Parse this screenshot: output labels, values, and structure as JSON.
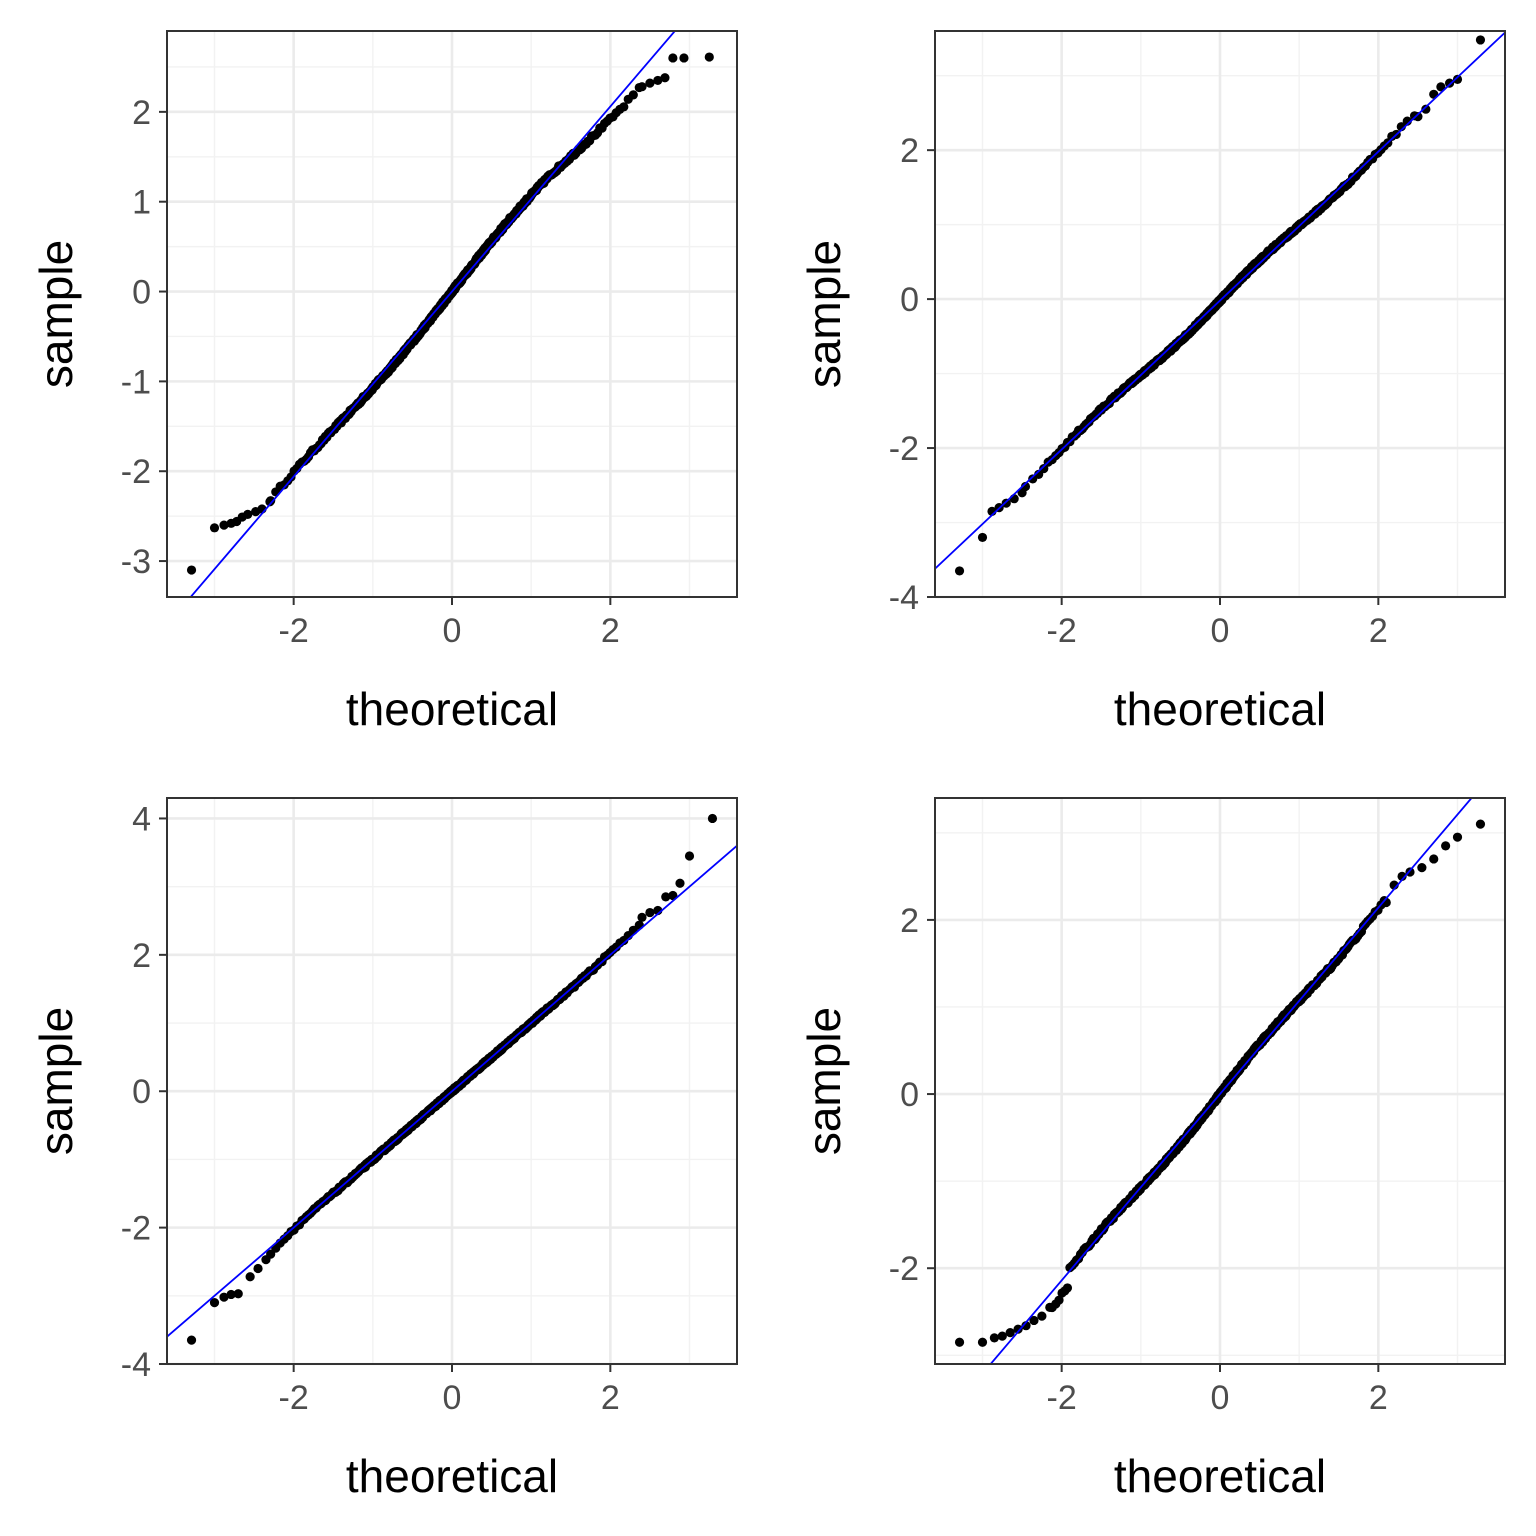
{
  "colors": {
    "background": "#ffffff",
    "panel_border": "#333333",
    "grid_major": "#ebebeb",
    "grid_minor": "#f2f2f2",
    "points": "#000000",
    "reference_line": "#0000ff"
  },
  "chart_data": [
    {
      "type": "scatter",
      "xlabel": "theoretical",
      "ylabel": "sample",
      "xlim": [
        -3.6,
        3.6
      ],
      "ylim": [
        -3.4,
        2.9
      ],
      "xticks": [
        {
          "value": -2,
          "label": "-2"
        },
        {
          "value": 0,
          "label": "0"
        },
        {
          "value": 2,
          "label": "2"
        }
      ],
      "yticks": [
        {
          "value": -3,
          "label": "-3"
        },
        {
          "value": -2,
          "label": "-2"
        },
        {
          "value": -1,
          "label": "-1"
        },
        {
          "value": 0,
          "label": "0"
        },
        {
          "value": 1,
          "label": "1"
        },
        {
          "value": 2,
          "label": "2"
        }
      ],
      "reference_line": {
        "intercept": 0.0,
        "slope": 1.03
      },
      "deviation": "lighttails",
      "tail_points": {
        "low": [
          [
            -3.29,
            -3.1
          ],
          [
            -3.0,
            -2.63
          ],
          [
            -2.88,
            -2.6
          ],
          [
            -2.79,
            -2.58
          ],
          [
            -2.72,
            -2.56
          ],
          [
            -2.65,
            -2.51
          ],
          [
            -2.58,
            -2.48
          ],
          [
            -2.48,
            -2.45
          ],
          [
            -2.4,
            -2.42
          ],
          [
            -2.3,
            -2.34
          ]
        ],
        "high": [
          [
            2.4,
            2.28
          ],
          [
            2.5,
            2.32
          ],
          [
            2.6,
            2.35
          ],
          [
            2.69,
            2.38
          ],
          [
            2.79,
            2.6
          ],
          [
            2.93,
            2.6
          ],
          [
            3.25,
            2.61
          ]
        ]
      }
    },
    {
      "type": "scatter",
      "xlabel": "theoretical",
      "ylabel": "sample",
      "xlim": [
        -3.6,
        3.6
      ],
      "ylim": [
        -4.0,
        3.6
      ],
      "xticks": [
        {
          "value": -2,
          "label": "-2"
        },
        {
          "value": 0,
          "label": "0"
        },
        {
          "value": 2,
          "label": "2"
        }
      ],
      "yticks": [
        {
          "value": -4,
          "label": "-4"
        },
        {
          "value": -2,
          "label": "-2"
        },
        {
          "value": 0,
          "label": "0"
        },
        {
          "value": 2,
          "label": "2"
        }
      ],
      "reference_line": {
        "intercept": -0.02,
        "slope": 1.0
      },
      "deviation": "normal",
      "tail_points": {
        "low": [
          [
            -3.29,
            -3.65
          ],
          [
            -3.0,
            -3.2
          ],
          [
            -2.88,
            -2.85
          ],
          [
            -2.79,
            -2.8
          ],
          [
            -2.7,
            -2.74
          ],
          [
            -2.6,
            -2.68
          ],
          [
            -2.5,
            -2.6
          ]
        ],
        "high": [
          [
            2.5,
            2.45
          ],
          [
            2.6,
            2.55
          ],
          [
            2.7,
            2.75
          ],
          [
            2.79,
            2.85
          ],
          [
            2.9,
            2.9
          ],
          [
            3.0,
            2.95
          ],
          [
            3.29,
            3.48
          ]
        ]
      }
    },
    {
      "type": "scatter",
      "xlabel": "theoretical",
      "ylabel": "sample",
      "xlim": [
        -3.6,
        3.6
      ],
      "ylim": [
        -4.0,
        4.3
      ],
      "xticks": [
        {
          "value": -2,
          "label": "-2"
        },
        {
          "value": 0,
          "label": "0"
        },
        {
          "value": 2,
          "label": "2"
        }
      ],
      "yticks": [
        {
          "value": -4,
          "label": "-4"
        },
        {
          "value": -2,
          "label": "-2"
        },
        {
          "value": 0,
          "label": "0"
        },
        {
          "value": 2,
          "label": "2"
        },
        {
          "value": 4,
          "label": "4"
        }
      ],
      "reference_line": {
        "intercept": 0.0,
        "slope": 1.0
      },
      "deviation": "heavytails",
      "tail_points": {
        "low": [
          [
            -3.29,
            -3.65
          ],
          [
            -3.0,
            -3.1
          ],
          [
            -2.88,
            -3.02
          ],
          [
            -2.79,
            -2.98
          ],
          [
            -2.7,
            -2.97
          ],
          [
            -2.55,
            -2.72
          ],
          [
            -2.45,
            -2.6
          ],
          [
            -2.35,
            -2.47
          ]
        ],
        "high": [
          [
            2.4,
            2.55
          ],
          [
            2.5,
            2.62
          ],
          [
            2.6,
            2.65
          ],
          [
            2.7,
            2.85
          ],
          [
            2.79,
            2.87
          ],
          [
            2.88,
            3.05
          ],
          [
            3.0,
            3.45
          ],
          [
            3.29,
            4.0
          ]
        ]
      }
    },
    {
      "type": "scatter",
      "xlabel": "theoretical",
      "ylabel": "sample",
      "xlim": [
        -3.6,
        3.6
      ],
      "ylim": [
        -3.1,
        3.4
      ],
      "xticks": [
        {
          "value": -2,
          "label": "-2"
        },
        {
          "value": 0,
          "label": "0"
        },
        {
          "value": 2,
          "label": "2"
        }
      ],
      "yticks": [
        {
          "value": -2,
          "label": "-2"
        },
        {
          "value": 0,
          "label": "0"
        },
        {
          "value": 2,
          "label": "2"
        }
      ],
      "reference_line": {
        "intercept": 0.0,
        "slope": 1.07
      },
      "deviation": "step",
      "tail_points": {
        "low": [
          [
            -3.29,
            -2.85
          ],
          [
            -3.0,
            -2.85
          ],
          [
            -2.85,
            -2.8
          ],
          [
            -2.75,
            -2.78
          ],
          [
            -2.65,
            -2.74
          ],
          [
            -2.55,
            -2.7
          ],
          [
            -2.45,
            -2.66
          ],
          [
            -2.35,
            -2.6
          ],
          [
            -2.25,
            -2.55
          ],
          [
            -2.15,
            -2.45
          ]
        ],
        "high": [
          [
            2.1,
            2.2
          ],
          [
            2.2,
            2.4
          ],
          [
            2.3,
            2.5
          ],
          [
            2.4,
            2.55
          ],
          [
            2.55,
            2.6
          ],
          [
            2.7,
            2.7
          ],
          [
            2.85,
            2.85
          ],
          [
            3.0,
            2.95
          ],
          [
            3.29,
            3.1
          ]
        ]
      }
    }
  ]
}
